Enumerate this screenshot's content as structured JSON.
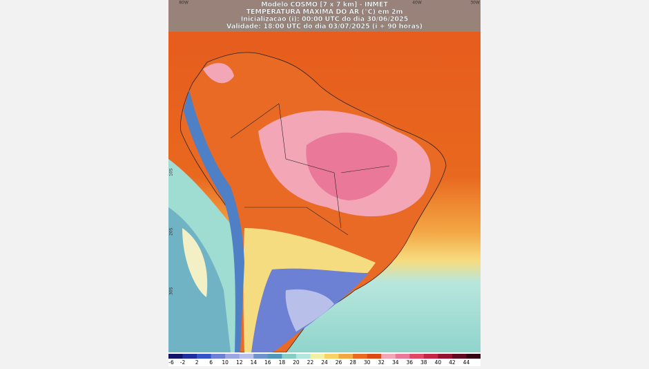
{
  "header": {
    "lines": [
      "Modelo COSMO [7 x 7 km] - INMET",
      "TEMPERATURA MÁXIMA DO AR (°C) em 2m",
      "Inicialização (i): 00:00 UTC do dia 30/06/2025",
      "Validade: 18:00 UTC do dia 03/07/2025 (i + 90 horas)"
    ]
  },
  "map": {
    "lon_labels": [
      "80W",
      "40W",
      "30W"
    ],
    "lat_labels": [
      "10S",
      "20S",
      "30S"
    ]
  },
  "legend": {
    "labels": [
      "-6",
      "-2",
      "2",
      "6",
      "10",
      "12",
      "14",
      "16",
      "18",
      "20",
      "22",
      "24",
      "26",
      "28",
      "30",
      "32",
      "34",
      "36",
      "38",
      "40",
      "42",
      "44"
    ],
    "colors": [
      "#141466",
      "#1f2f9e",
      "#3454c8",
      "#6c80d4",
      "#9ea6e2",
      "#b8bfe9",
      "#6f94cc",
      "#4f96b8",
      "#86cdc4",
      "#b5e6dc",
      "#f2f0a4",
      "#f8d264",
      "#f2a842",
      "#ea6a22",
      "#dc4a14",
      "#f3a6b6",
      "#ea7898",
      "#e14766",
      "#c42646",
      "#931332",
      "#620a22",
      "#330412"
    ]
  }
}
